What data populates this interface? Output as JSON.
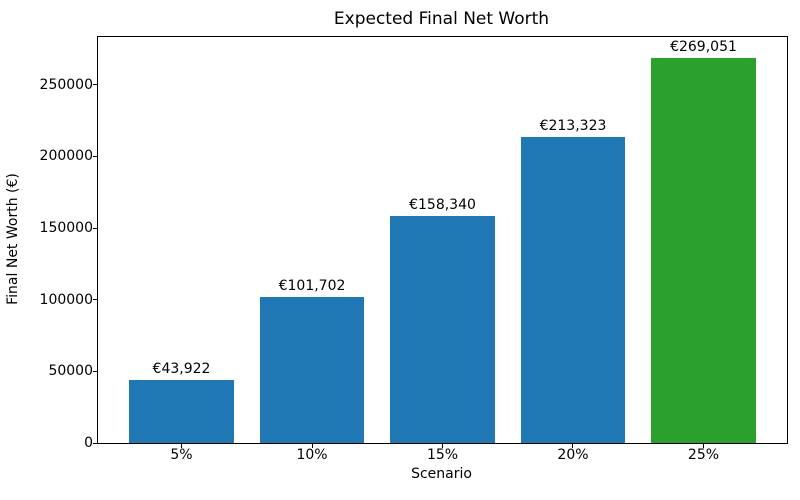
{
  "chart_data": {
    "type": "bar",
    "title": "Expected Final Net Worth",
    "xlabel": "Scenario",
    "ylabel": "Final Net Worth (€)",
    "categories": [
      "5%",
      "10%",
      "15%",
      "20%",
      "25%"
    ],
    "values": [
      43922,
      101702,
      158340,
      213323,
      269051
    ],
    "bar_labels": [
      "€43,922",
      "€101,702",
      "€158,340",
      "€213,323",
      "€269,051"
    ],
    "bar_colors": [
      "#1f77b4",
      "#1f77b4",
      "#1f77b4",
      "#1f77b4",
      "#2ca02c"
    ],
    "ylim": [
      0,
      283400
    ],
    "yticks": [
      0,
      50000,
      100000,
      150000,
      200000,
      250000
    ],
    "ytick_labels": [
      "0",
      "50000",
      "100000",
      "150000",
      "200000",
      "250000"
    ],
    "grid": false,
    "legend": null,
    "text_color": "#000000",
    "spine_color": "#000000",
    "background_color": "#ffffff"
  }
}
